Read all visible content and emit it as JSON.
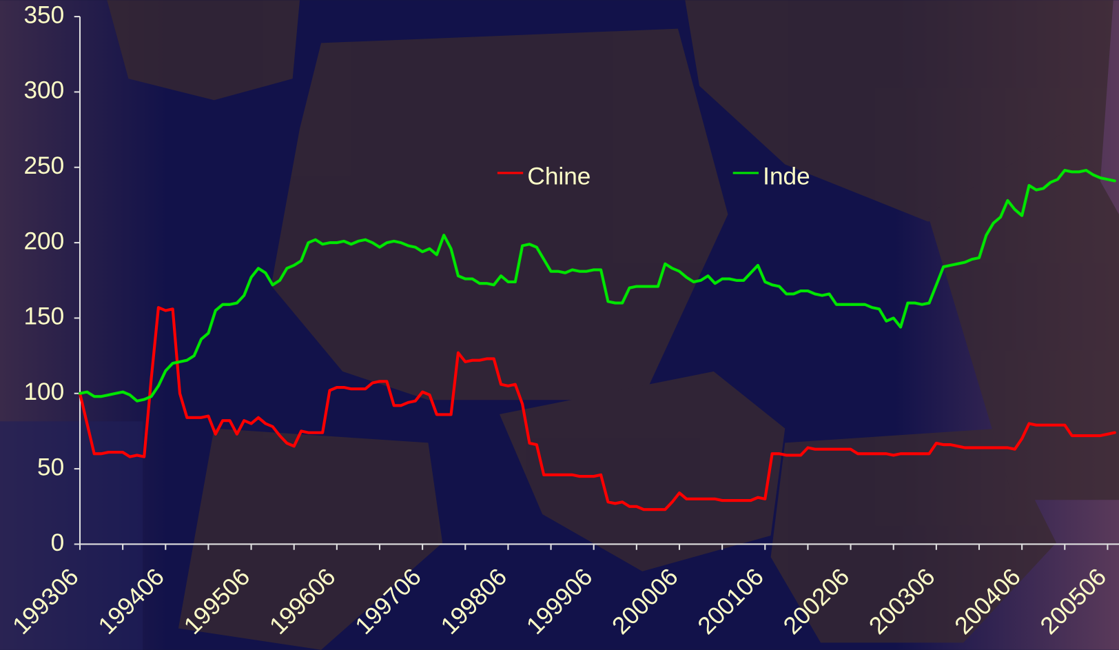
{
  "chart_data": {
    "type": "line",
    "categories": [
      "199306",
      null,
      null,
      null,
      null,
      null,
      null,
      null,
      null,
      null,
      null,
      null,
      "199406",
      null,
      null,
      null,
      null,
      null,
      null,
      null,
      null,
      null,
      null,
      null,
      "199506",
      null,
      null,
      null,
      null,
      null,
      null,
      null,
      null,
      null,
      null,
      null,
      "199606",
      null,
      null,
      null,
      null,
      null,
      null,
      null,
      null,
      null,
      null,
      null,
      "199706",
      null,
      null,
      null,
      null,
      null,
      null,
      null,
      null,
      null,
      null,
      null,
      "199806",
      null,
      null,
      null,
      null,
      null,
      null,
      null,
      null,
      null,
      null,
      null,
      "199906",
      null,
      null,
      null,
      null,
      null,
      null,
      null,
      null,
      null,
      null,
      null,
      "200006",
      null,
      null,
      null,
      null,
      null,
      null,
      null,
      null,
      null,
      null,
      null,
      "200106",
      null,
      null,
      null,
      null,
      null,
      null,
      null,
      null,
      null,
      null,
      null,
      "200206",
      null,
      null,
      null,
      null,
      null,
      null,
      null,
      null,
      null,
      null,
      null,
      "200306",
      null,
      null,
      null,
      null,
      null,
      null,
      null,
      null,
      null,
      null,
      null,
      "200406",
      null,
      null,
      null,
      null,
      null,
      null,
      null,
      null,
      null,
      null,
      null,
      "200506",
      null
    ],
    "series": [
      {
        "name": "Chine",
        "color": "#ff0000",
        "values": [
          100,
          80,
          60,
          60,
          61,
          61,
          61,
          58,
          59,
          58,
          110,
          157,
          155,
          156,
          100,
          84,
          84,
          84,
          85,
          73,
          82,
          82,
          73,
          82,
          80,
          84,
          80,
          78,
          72,
          67,
          65,
          75,
          74,
          74,
          74,
          102,
          104,
          104,
          103,
          103,
          103,
          107,
          108,
          108,
          92,
          92,
          94,
          95,
          101,
          99,
          86,
          86,
          86,
          127,
          121,
          122,
          122,
          123,
          123,
          106,
          105,
          106,
          93,
          67,
          66,
          46,
          46,
          46,
          46,
          46,
          45,
          45,
          45,
          46,
          28,
          27,
          28,
          25,
          25,
          23,
          23,
          23,
          23,
          28,
          34,
          30,
          30,
          30,
          30,
          30,
          29,
          29,
          29,
          29,
          29,
          31,
          30,
          60,
          60,
          59,
          59,
          59,
          64,
          63,
          63,
          63,
          63,
          63,
          63,
          60,
          60,
          60,
          60,
          60,
          59,
          60,
          60,
          60,
          60,
          60,
          67,
          66,
          66,
          65,
          64,
          64,
          64,
          64,
          64,
          64,
          64,
          63,
          70,
          80,
          79,
          79,
          79,
          79,
          79,
          72,
          72,
          72,
          72,
          72,
          73,
          74
        ]
      },
      {
        "name": "Inde",
        "color": "#00e600",
        "values": [
          100,
          101,
          98,
          98,
          99,
          100,
          101,
          99,
          95,
          96,
          98,
          105,
          115,
          120,
          121,
          122,
          125,
          136,
          140,
          155,
          159,
          159,
          160,
          165,
          177,
          183,
          180,
          172,
          175,
          183,
          185,
          188,
          200,
          202,
          199,
          200,
          200,
          201,
          199,
          201,
          202,
          200,
          197,
          200,
          201,
          200,
          198,
          197,
          194,
          196,
          192,
          205,
          196,
          178,
          176,
          176,
          173,
          173,
          172,
          178,
          174,
          174,
          198,
          199,
          197,
          189,
          181,
          181,
          180,
          182,
          181,
          181,
          182,
          182,
          161,
          160,
          160,
          170,
          171,
          171,
          171,
          171,
          186,
          183,
          181,
          177,
          174,
          175,
          178,
          173,
          176,
          176,
          175,
          175,
          180,
          185,
          174,
          172,
          171,
          166,
          166,
          168,
          168,
          166,
          165,
          166,
          159,
          159,
          159,
          159,
          159,
          157,
          156,
          148,
          150,
          144,
          160,
          160,
          159,
          160,
          172,
          184,
          185,
          186,
          187,
          189,
          190,
          205,
          213,
          217,
          228,
          222,
          218,
          238,
          235,
          236,
          240,
          242,
          248,
          247,
          247,
          248,
          245,
          243,
          242,
          241
        ]
      }
    ],
    "ylim": [
      0,
      350
    ],
    "yticks": [
      0,
      50,
      100,
      150,
      200,
      250,
      300,
      350
    ]
  }
}
